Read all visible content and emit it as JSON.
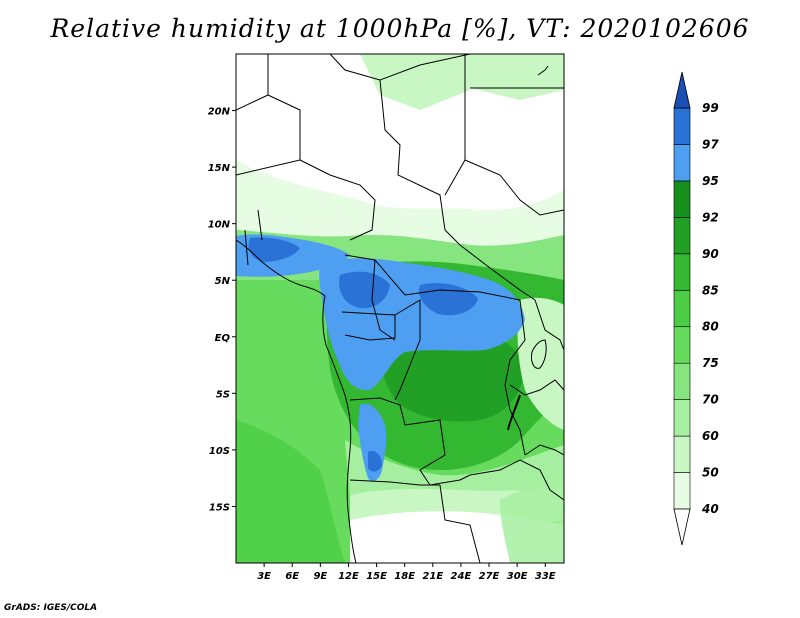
{
  "title": "Relative humidity at 1000hPa [%], VT: 2020102606",
  "footer": "GrADS: IGES/COLA",
  "map": {
    "lon_range": [
      0,
      35
    ],
    "lat_range": [
      -20,
      25
    ],
    "lon_ticks": [
      {
        "value": 3,
        "label": "3E"
      },
      {
        "value": 6,
        "label": "6E"
      },
      {
        "value": 9,
        "label": "9E"
      },
      {
        "value": 12,
        "label": "12E"
      },
      {
        "value": 15,
        "label": "15E"
      },
      {
        "value": 18,
        "label": "18E"
      },
      {
        "value": 21,
        "label": "21E"
      },
      {
        "value": 24,
        "label": "24E"
      },
      {
        "value": 27,
        "label": "27E"
      },
      {
        "value": 30,
        "label": "30E"
      },
      {
        "value": 33,
        "label": "33E"
      }
    ],
    "lat_ticks": [
      {
        "value": 20,
        "label": "20N"
      },
      {
        "value": 15,
        "label": "15N"
      },
      {
        "value": 10,
        "label": "10N"
      },
      {
        "value": 5,
        "label": "5N"
      },
      {
        "value": 0,
        "label": "EQ"
      },
      {
        "value": -5,
        "label": "5S"
      },
      {
        "value": -10,
        "label": "10S"
      },
      {
        "value": -15,
        "label": "15S"
      }
    ]
  },
  "colorbar": {
    "levels": [
      "40",
      "50",
      "60",
      "70",
      "75",
      "80",
      "85",
      "90",
      "92",
      "95",
      "97",
      "99"
    ],
    "colors": [
      "#ffffff",
      "#e6fde4",
      "#c8f7c3",
      "#a6efa0",
      "#86e57f",
      "#66db5e",
      "#4ccd45",
      "#34b832",
      "#22a026",
      "#168f1c",
      "#4e9ff2",
      "#2a72d6",
      "#1c4fb6"
    ]
  },
  "colors": {
    "ocean": "#66db5e",
    "ocean_dark": "#4ccd45",
    "land_dry": "#ffffff",
    "land_light": "#e6fde4",
    "land_mid": "#a6efa0",
    "forest": "#34b832",
    "forest_dark": "#22a026",
    "wet_light": "#4e9ff2",
    "wet_dark": "#2a72d6",
    "border": "#000000"
  }
}
